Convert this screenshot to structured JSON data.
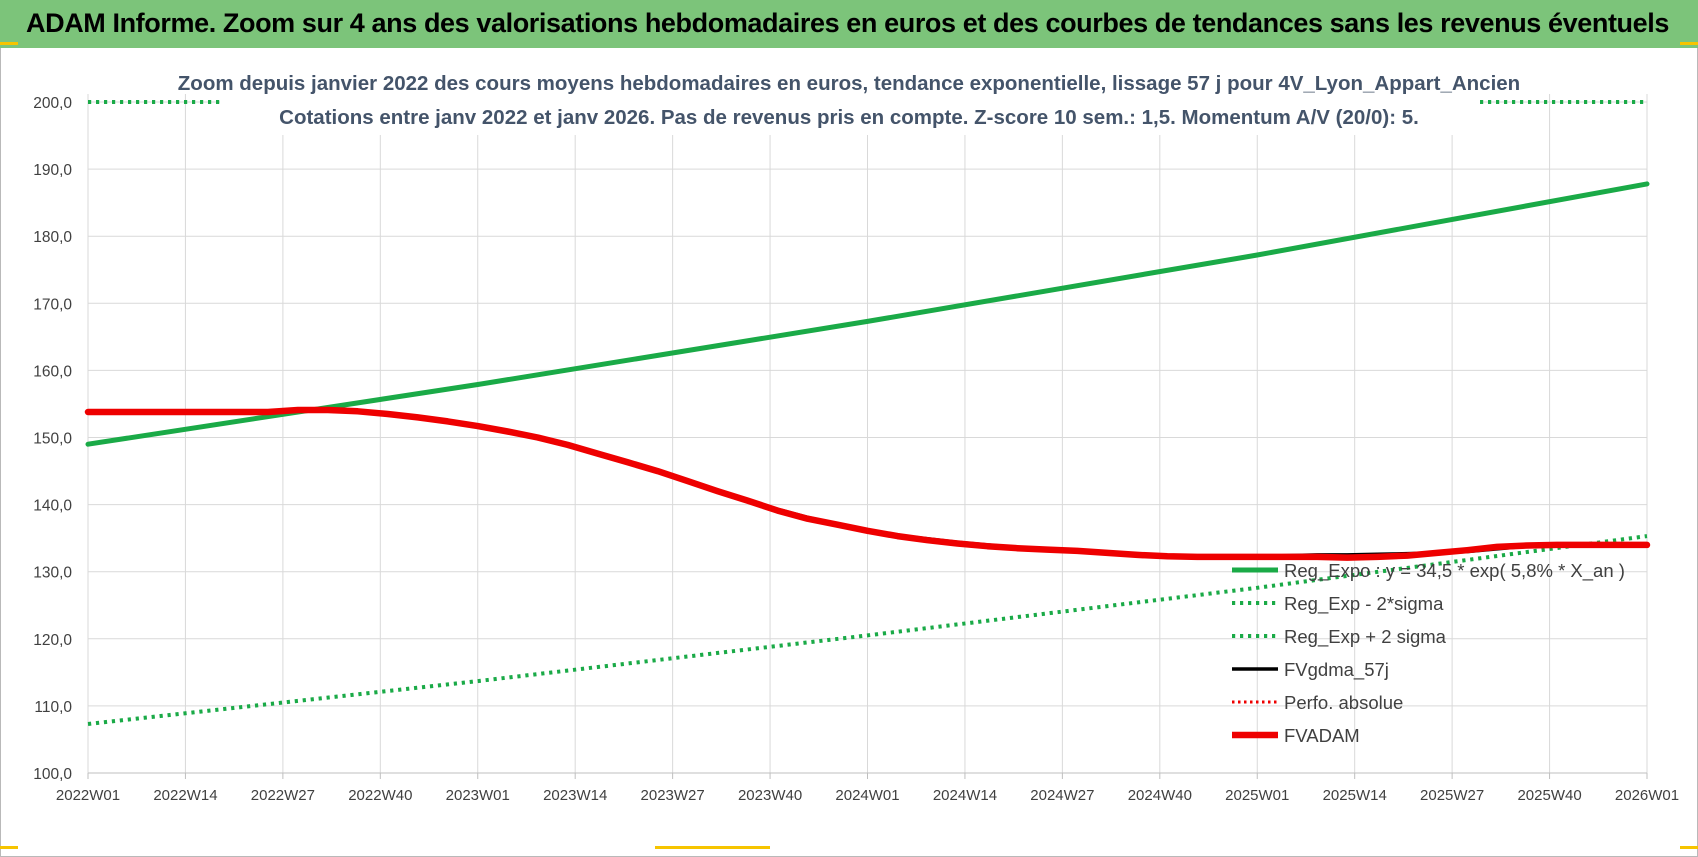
{
  "header": {
    "title": "ADAM Informe. Zoom sur 4 ans des valorisations hebdomadaires en euros et des courbes de tendances sans les revenus éventuels"
  },
  "colors": {
    "header_bg": "#7cc47a",
    "green": "#1aaa47",
    "black": "#000000",
    "red": "#ee0000",
    "grid": "#d9d9d9",
    "text": "#404040"
  },
  "chart_data": {
    "type": "line",
    "title_line1": "Zoom depuis janvier 2022 des cours moyens hebdomadaires en euros, tendance exponentielle, lissage 57 j pour 4V_Lyon_Appart_Ancien",
    "title_line2": "Cotations entre janv 2022 et janv 2026. Pas de revenus pris en compte. Z-score 10 sem.: 1,5. Momentum A/V (20/0): 5.",
    "xlabel": "",
    "ylabel": "",
    "ylim": [
      100,
      200
    ],
    "y_ticks": [
      "200,0",
      "190,0",
      "180,0",
      "170,0",
      "160,0",
      "150,0",
      "140,0",
      "130,0",
      "120,0",
      "110,0",
      "100,0"
    ],
    "x_ticks": [
      "2022W01",
      "2022W14",
      "2022W27",
      "2022W40",
      "2023W01",
      "2023W14",
      "2023W27",
      "2023W40",
      "2024W01",
      "2024W14",
      "2024W27",
      "2024W40",
      "2025W01",
      "2025W14",
      "2025W27",
      "2025W40",
      "2026W01"
    ],
    "x_range": [
      0,
      208
    ],
    "series": [
      {
        "name": "Reg_Expo : y = 34,5 * exp( 5,8% * X_an )",
        "style": "solid-green",
        "x": [
          0,
          52,
          104,
          156,
          208
        ],
        "values": [
          149.0,
          157.9,
          167.3,
          177.2,
          187.8
        ]
      },
      {
        "name": "Reg_Exp - 2*sigma",
        "style": "dotted-green",
        "x": [
          0,
          52,
          104,
          156,
          208
        ],
        "values": [
          107.3,
          113.7,
          120.5,
          127.6,
          135.3
        ]
      },
      {
        "name": "Reg_Exp + 2 sigma",
        "style": "dotted-green",
        "x": [
          0,
          18,
          185,
          208
        ],
        "values": [
          200.0,
          200.0,
          200.0,
          200.0
        ],
        "note": "upper band clipped at 200"
      },
      {
        "name": "FVgdma_57j",
        "style": "solid-black",
        "x": [
          0,
          8,
          16,
          24,
          28,
          32,
          36,
          40,
          44,
          48,
          52,
          56,
          60,
          64,
          68,
          72,
          76,
          80,
          84,
          88,
          92,
          96,
          100,
          104,
          108,
          112,
          116,
          120,
          124,
          128,
          132,
          136,
          140,
          144,
          148,
          152,
          156,
          160,
          164,
          168,
          172,
          176,
          180,
          184,
          188,
          192,
          196,
          200,
          204,
          208
        ],
        "values": [
          153.9,
          153.9,
          153.9,
          153.9,
          154.0,
          154.0,
          153.8,
          153.4,
          152.9,
          152.3,
          151.6,
          150.8,
          149.9,
          148.9,
          147.6,
          146.3,
          145.0,
          143.6,
          142.1,
          140.7,
          139.3,
          138.1,
          137.1,
          136.1,
          135.4,
          134.9,
          134.4,
          134.0,
          133.6,
          133.4,
          133.2,
          132.9,
          132.6,
          132.4,
          132.3,
          132.3,
          132.3,
          132.4,
          132.5,
          132.5,
          132.6,
          132.7,
          132.8,
          133.0,
          133.4,
          133.8,
          134.0,
          134.1,
          134.1,
          134.1
        ]
      },
      {
        "name": "Perfo. absolue",
        "style": "dotted-red",
        "x": [],
        "values": []
      },
      {
        "name": "FVADAM",
        "style": "solid-red",
        "x": [
          0,
          8,
          16,
          24,
          28,
          32,
          36,
          40,
          44,
          48,
          52,
          56,
          60,
          64,
          68,
          72,
          76,
          80,
          84,
          88,
          92,
          96,
          100,
          104,
          108,
          112,
          116,
          120,
          124,
          128,
          132,
          136,
          140,
          144,
          148,
          152,
          156,
          160,
          164,
          168,
          172,
          176,
          180,
          184,
          188,
          192,
          196,
          200,
          204,
          208
        ],
        "values": [
          153.8,
          153.8,
          153.8,
          153.8,
          154.1,
          154.1,
          153.9,
          153.5,
          153.0,
          152.4,
          151.7,
          150.9,
          150.0,
          148.9,
          147.6,
          146.3,
          145.0,
          143.5,
          142.0,
          140.6,
          139.1,
          137.9,
          137.0,
          136.1,
          135.3,
          134.7,
          134.2,
          133.8,
          133.5,
          133.3,
          133.1,
          132.8,
          132.5,
          132.3,
          132.2,
          132.2,
          132.2,
          132.2,
          132.2,
          132.1,
          132.2,
          132.4,
          132.8,
          133.2,
          133.7,
          133.9,
          134.0,
          134.0,
          134.0,
          134.0
        ]
      }
    ],
    "legend": {
      "placement": "bottom-right",
      "entries": [
        "Reg_Expo : y = 34,5 * exp( 5,8% * X_an )",
        "Reg_Exp - 2*sigma",
        "Reg_Exp + 2 sigma",
        "FVgdma_57j",
        "Perfo. absolue",
        "FVADAM"
      ]
    },
    "grid": true
  }
}
